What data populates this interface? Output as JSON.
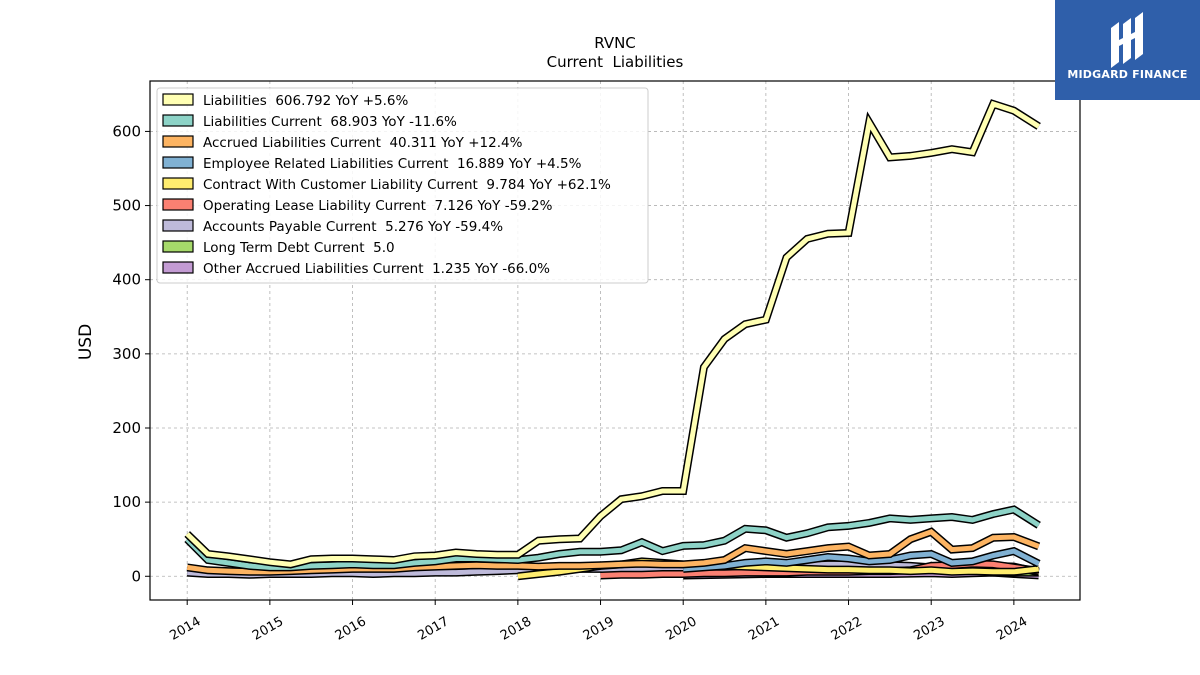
{
  "brand": {
    "name": "MIDGARD FINANCE",
    "color": "#2f5faa"
  },
  "chart_data": {
    "type": "line",
    "title": "RVNC",
    "subtitle": "Current  Liabilities",
    "ylabel": "USD",
    "xlabel": "",
    "xlim": [
      2013.55,
      2024.8
    ],
    "ylim": [
      -32,
      668
    ],
    "x_ticks": [
      "2014",
      "2015",
      "2016",
      "2017",
      "2018",
      "2019",
      "2020",
      "2021",
      "2022",
      "2023",
      "2024"
    ],
    "y_ticks": [
      0,
      100,
      200,
      300,
      400,
      500,
      600
    ],
    "grid": true,
    "legend_position": "top-left",
    "series": [
      {
        "name": "Other Accrued Liabilities Current",
        "legend": "Other Accrued Liabilities Current  1.235 YoY -66.0%",
        "color": "#c39bd3",
        "x": [
          2020.0,
          2020.5,
          2021.0,
          2021.5,
          2022.0,
          2022.5,
          2023.0,
          2023.25,
          2023.5,
          2023.75,
          2024.0,
          2024.3
        ],
        "y": [
          1,
          2,
          3,
          3,
          3,
          3,
          4,
          3,
          4,
          5,
          3,
          1.2
        ]
      },
      {
        "name": "Long Term Debt Current",
        "legend": "Long Term Debt Current  5.0",
        "color": "#a6d96a",
        "x": [
          2023.75,
          2024.0,
          2024.3
        ],
        "y": [
          5,
          5,
          5
        ]
      },
      {
        "name": "Accounts Payable Current",
        "legend": "Accounts Payable Current  5.276 YoY -59.4%",
        "color": "#bebada",
        "x": [
          2014.0,
          2014.25,
          2014.5,
          2014.75,
          2015.0,
          2015.25,
          2015.5,
          2015.75,
          2016.0,
          2016.25,
          2016.5,
          2016.75,
          2017.0,
          2017.25,
          2017.5,
          2017.75,
          2018.0,
          2018.25,
          2018.5,
          2018.75,
          2019.0,
          2019.25,
          2019.5,
          2019.75,
          2020.0,
          2020.25,
          2020.5,
          2020.75,
          2021.0,
          2021.25,
          2021.5,
          2021.75,
          2022.0,
          2022.25,
          2022.5,
          2022.75,
          2023.0,
          2023.25,
          2023.5,
          2023.75,
          2024.0,
          2024.3
        ],
        "y": [
          5,
          3,
          3,
          2,
          3,
          3,
          3,
          4,
          4,
          3,
          4,
          4,
          5,
          5,
          6,
          7,
          8,
          8,
          9,
          10,
          10,
          8,
          9,
          10,
          11,
          12,
          13,
          14,
          15,
          14,
          15,
          16,
          16,
          14,
          15,
          14,
          12,
          13,
          13,
          14,
          13,
          5.3
        ]
      },
      {
        "name": "Operating Lease Liability Current",
        "legend": "Operating Lease Liability Current  7.126 YoY -59.2%",
        "color": "#fb8072",
        "x": [
          2019.0,
          2019.25,
          2019.5,
          2019.75,
          2020.0,
          2020.25,
          2020.5,
          2020.75,
          2021.0,
          2021.25,
          2021.5,
          2021.75,
          2022.0,
          2022.25,
          2022.5,
          2022.75,
          2023.0,
          2023.25,
          2023.5,
          2023.75,
          2024.0,
          2024.3
        ],
        "y": [
          1,
          2,
          2,
          3,
          3,
          4,
          4,
          5,
          5,
          5,
          6,
          6,
          6,
          7,
          7,
          8,
          14,
          15,
          17,
          16,
          12,
          7.1
        ]
      },
      {
        "name": "Contract With Customer Liability Current",
        "legend": "Contract With Customer Liability Current  9.784 YoY +62.1%",
        "color": "#ffed6f",
        "x": [
          2018.0,
          2018.25,
          2018.5,
          2018.75,
          2019.0,
          2019.25,
          2019.5,
          2019.75,
          2020.0,
          2020.25,
          2020.5,
          2020.75,
          2021.0,
          2021.25,
          2021.5,
          2021.75,
          2022.0,
          2022.25,
          2022.5,
          2022.75,
          2023.0,
          2023.25,
          2023.5,
          2023.75,
          2024.0,
          2024.3
        ],
        "y": [
          0,
          3,
          6,
          10,
          14,
          16,
          20,
          18,
          16,
          15,
          14,
          13,
          12,
          11,
          10,
          9,
          9,
          8,
          8,
          7,
          8,
          6,
          7,
          6,
          6,
          9.8
        ]
      },
      {
        "name": "Employee Related Liabilities Current",
        "legend": "Employee Related Liabilities Current  16.889 YoY +4.5%",
        "color": "#80b1d3",
        "x": [
          2020.0,
          2020.25,
          2020.5,
          2020.75,
          2021.0,
          2021.25,
          2021.5,
          2021.75,
          2022.0,
          2022.25,
          2022.5,
          2022.75,
          2023.0,
          2023.25,
          2023.5,
          2023.75,
          2024.0,
          2024.3
        ],
        "y": [
          10,
          12,
          14,
          18,
          20,
          18,
          22,
          26,
          24,
          20,
          22,
          28,
          30,
          18,
          20,
          28,
          34,
          16.9
        ]
      },
      {
        "name": "Accrued Liabilities Current",
        "legend": "Accrued Liabilities Current  40.311 YoY +12.4%",
        "color": "#fdb462",
        "x": [
          2014.0,
          2014.25,
          2014.5,
          2014.75,
          2015.0,
          2015.25,
          2015.5,
          2015.75,
          2016.0,
          2016.25,
          2016.5,
          2016.75,
          2017.0,
          2017.25,
          2017.5,
          2017.75,
          2018.0,
          2018.25,
          2018.5,
          2018.75,
          2019.0,
          2019.25,
          2019.5,
          2019.75,
          2020.0,
          2020.25,
          2020.5,
          2020.75,
          2021.0,
          2021.25,
          2021.5,
          2021.75,
          2022.0,
          2022.25,
          2022.5,
          2022.75,
          2023.0,
          2023.25,
          2023.5,
          2023.75,
          2024.0,
          2024.3
        ],
        "y": [
          12,
          8,
          7,
          6,
          6,
          7,
          8,
          9,
          10,
          10,
          10,
          12,
          13,
          14,
          15,
          14,
          14,
          13,
          14,
          14,
          15,
          16,
          17,
          16,
          16,
          18,
          22,
          38,
          34,
          30,
          34,
          38,
          40,
          28,
          30,
          50,
          60,
          36,
          38,
          52,
          53,
          40.3
        ]
      },
      {
        "name": "Liabilities Current",
        "legend": "Liabilities Current  68.903 YoY -11.6%",
        "color": "#8dd3c7",
        "x": [
          2014.0,
          2014.25,
          2014.5,
          2014.75,
          2015.0,
          2015.25,
          2015.5,
          2015.75,
          2016.0,
          2016.25,
          2016.5,
          2016.75,
          2017.0,
          2017.25,
          2017.5,
          2017.75,
          2018.0,
          2018.25,
          2018.5,
          2018.75,
          2019.0,
          2019.25,
          2019.5,
          2019.75,
          2020.0,
          2020.25,
          2020.5,
          2020.75,
          2021.0,
          2021.25,
          2021.5,
          2021.75,
          2022.0,
          2022.25,
          2022.5,
          2022.75,
          2023.0,
          2023.25,
          2023.5,
          2023.75,
          2024.0,
          2024.3
        ],
        "y": [
          50,
          22,
          18,
          14,
          12,
          12,
          14,
          15,
          16,
          15,
          15,
          18,
          20,
          24,
          24,
          23,
          22,
          25,
          30,
          33,
          33,
          35,
          46,
          34,
          41,
          42,
          48,
          64,
          62,
          52,
          58,
          66,
          68,
          72,
          78,
          76,
          78,
          80,
          76,
          84,
          90,
          68.9
        ]
      },
      {
        "name": "Liabilities",
        "legend": "Liabilities  606.792 YoY +5.6%",
        "color": "#ffffb3",
        "x": [
          2014.0,
          2014.25,
          2014.5,
          2014.75,
          2015.0,
          2015.25,
          2015.5,
          2015.75,
          2016.0,
          2016.25,
          2016.5,
          2016.75,
          2017.0,
          2017.25,
          2017.5,
          2017.75,
          2018.0,
          2018.25,
          2018.5,
          2018.75,
          2019.0,
          2019.25,
          2019.5,
          2019.75,
          2020.0,
          2020.25,
          2020.5,
          2020.75,
          2021.0,
          2021.25,
          2021.5,
          2021.75,
          2022.0,
          2022.25,
          2022.5,
          2022.75,
          2023.0,
          2023.25,
          2023.5,
          2023.75,
          2024.0,
          2024.3
        ],
        "y": [
          57,
          30,
          27,
          23,
          19,
          16,
          23,
          24,
          24,
          23,
          22,
          27,
          28,
          32,
          30,
          29,
          29,
          48,
          50,
          51,
          81,
          104,
          108,
          115,
          115,
          282,
          320,
          340,
          346,
          430,
          455,
          462,
          463,
          612,
          565,
          567,
          571,
          576,
          572,
          637,
          628,
          606.8
        ]
      }
    ]
  }
}
